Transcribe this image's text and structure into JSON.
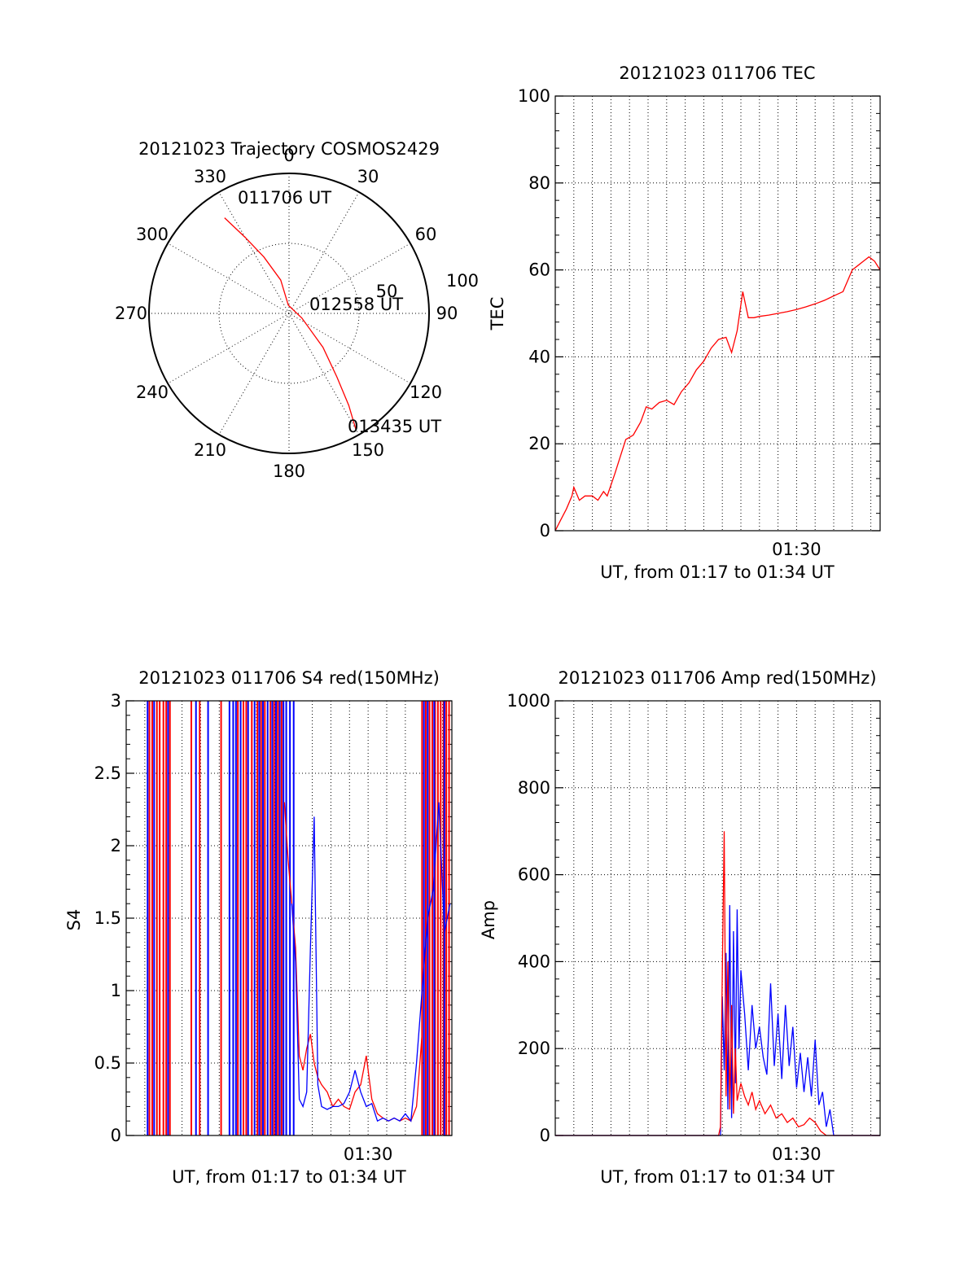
{
  "colors": {
    "red": "#ff0000",
    "blue": "#0000ff",
    "axis": "#000000"
  },
  "chart_data": [
    {
      "type": "polar-trajectory",
      "title": "20121023 Trajectory COSMOS2429",
      "angle_labels": [
        "0",
        "30",
        "60",
        "90",
        "120",
        "150",
        "180",
        "210",
        "240",
        "270",
        "300",
        "330"
      ],
      "radius_labels": [
        "50",
        "100"
      ],
      "start_label": "011706 UT",
      "mid_label": "012558 UT",
      "end_label": "013435 UT",
      "trajectory": [
        [
          326,
          84
        ],
        [
          330,
          64
        ],
        [
          336,
          45
        ],
        [
          346,
          25
        ],
        [
          355,
          6
        ],
        [
          110,
          10
        ],
        [
          135,
          35
        ],
        [
          143,
          58
        ],
        [
          147,
          80
        ],
        [
          150,
          97
        ]
      ]
    },
    {
      "type": "line",
      "title": "20121023 011706 TEC",
      "xlabel": "UT, from 01:17 to 01:34 UT",
      "ylabel": "TEC",
      "xlim": [
        0,
        17.5
      ],
      "ylim": [
        0,
        100
      ],
      "yticks": [
        "0",
        "20",
        "40",
        "60",
        "80",
        "100"
      ],
      "xtick_label": "01:30",
      "xtick_value": 13,
      "series": [
        {
          "color": "red",
          "x": [
            0,
            0.3,
            0.6,
            0.9,
            1.0,
            1.3,
            1.6,
            2.0,
            2.3,
            2.6,
            2.8,
            3.2,
            3.5,
            3.8,
            4.2,
            4.6,
            4.9,
            5.2,
            5.6,
            6.0,
            6.4,
            6.8,
            7.2,
            7.6,
            8.0,
            8.4,
            8.8,
            9.2,
            9.5,
            9.8,
            10.1,
            10.4,
            10.7,
            11.0,
            11.5,
            12.0,
            12.5,
            13.0,
            13.5,
            14.0,
            14.5,
            15.0,
            15.5,
            16.0,
            16.3,
            16.6,
            16.9,
            17.2,
            17.5
          ],
          "y": [
            0,
            2.5,
            5,
            8,
            10,
            7,
            8,
            8,
            7,
            9,
            8,
            13,
            17,
            21,
            22,
            25,
            28.5,
            28,
            29.5,
            30,
            29,
            32,
            34,
            37,
            39,
            42,
            44,
            44.5,
            41,
            46,
            55,
            49,
            49,
            49.3,
            49.6,
            50,
            50.4,
            50.9,
            51.5,
            52.2,
            53,
            54,
            55,
            60,
            61,
            62,
            63,
            62,
            60
          ]
        }
      ]
    },
    {
      "type": "line",
      "title": "20121023 011706 S4 red(150MHz)",
      "xlabel": "UT, from 01:17 to 01:34 UT",
      "ylabel": "S4",
      "xlim": [
        0,
        17.5
      ],
      "ylim": [
        0,
        3
      ],
      "yticks": [
        "0",
        "0.5",
        "1",
        "1.5",
        "2",
        "2.5",
        "3"
      ],
      "xtick_label": "01:30",
      "xtick_value": 13,
      "red_spikes_x": [
        1.25,
        1.4,
        1.65,
        1.8,
        2.0,
        2.15,
        2.35,
        3.5,
        3.95,
        5.1,
        6.0,
        6.3,
        6.45,
        6.75,
        7.05,
        7.25,
        7.45,
        7.75,
        7.95,
        8.15,
        8.35,
        15.9,
        16.1,
        16.3,
        16.45,
        16.6,
        16.75,
        16.9,
        17.05,
        17.2,
        17.35
      ],
      "blue_spikes_x": [
        1.15,
        1.5,
        2.25,
        3.75,
        4.4,
        5.55,
        5.75,
        5.9,
        6.15,
        6.55,
        6.9,
        7.15,
        7.35,
        7.6,
        7.85,
        8.05,
        8.25,
        8.45,
        8.6,
        8.8,
        9.0,
        16.0,
        16.2,
        16.55,
        17.1
      ],
      "series": [
        {
          "color": "red",
          "x": [
            8.5,
            8.7,
            8.9,
            9.1,
            9.3,
            9.5,
            9.7,
            9.9,
            10.1,
            10.3,
            10.5,
            10.8,
            11.1,
            11.4,
            11.7,
            12.0,
            12.3,
            12.6,
            12.9,
            13.2,
            13.5,
            13.8,
            14.1,
            14.4,
            14.7,
            15.0,
            15.3,
            15.6,
            15.9
          ],
          "y": [
            2.3,
            1.9,
            1.6,
            1.3,
            0.55,
            0.45,
            0.6,
            0.7,
            0.5,
            0.4,
            0.35,
            0.3,
            0.2,
            0.25,
            0.2,
            0.18,
            0.3,
            0.35,
            0.55,
            0.25,
            0.15,
            0.12,
            0.1,
            0.12,
            0.1,
            0.12,
            0.1,
            0.2,
            0.7
          ]
        },
        {
          "color": "blue",
          "x": [
            8.9,
            9.1,
            9.3,
            9.5,
            9.7,
            9.9,
            10.1,
            10.3,
            10.5,
            10.8,
            11.1,
            11.4,
            11.7,
            12.0,
            12.3,
            12.6,
            12.9,
            13.2,
            13.5,
            13.8,
            14.1,
            14.4,
            14.7,
            15.0,
            15.3,
            15.6,
            15.9,
            16.2,
            16.5,
            16.8,
            17.1,
            17.4
          ],
          "y": [
            1.6,
            1.2,
            0.25,
            0.2,
            0.3,
            1.3,
            2.2,
            0.35,
            0.2,
            0.18,
            0.2,
            0.2,
            0.22,
            0.3,
            0.45,
            0.3,
            0.2,
            0.22,
            0.1,
            0.12,
            0.1,
            0.12,
            0.1,
            0.15,
            0.1,
            0.5,
            1.0,
            1.5,
            1.7,
            2.3,
            1.4,
            1.6
          ]
        }
      ]
    },
    {
      "type": "line",
      "title": "20121023 011706 Amp red(150MHz)",
      "xlabel": "UT, from 01:17 to 01:34 UT",
      "ylabel": "Amp",
      "xlim": [
        0,
        17.5
      ],
      "ylim": [
        0,
        1000
      ],
      "yticks": [
        "0",
        "200",
        "400",
        "600",
        "800",
        "1000"
      ],
      "xtick_label": "01:30",
      "xtick_value": 13,
      "series": [
        {
          "color": "blue",
          "x": [
            0,
            8.9,
            9.0,
            9.1,
            9.2,
            9.3,
            9.4,
            9.5,
            9.6,
            9.7,
            9.8,
            9.9,
            10.0,
            10.2,
            10.4,
            10.6,
            10.8,
            11.0,
            11.2,
            11.4,
            11.6,
            11.8,
            12.0,
            12.2,
            12.4,
            12.6,
            12.8,
            13.0,
            13.2,
            13.4,
            13.6,
            13.8,
            14.0,
            14.2,
            14.4,
            14.6,
            14.8,
            15.0,
            17.5
          ],
          "y": [
            0,
            0,
            320,
            150,
            420,
            60,
            530,
            40,
            470,
            120,
            520,
            200,
            380,
            280,
            150,
            300,
            200,
            250,
            180,
            140,
            350,
            160,
            280,
            130,
            300,
            160,
            250,
            110,
            190,
            100,
            180,
            90,
            220,
            70,
            100,
            20,
            60,
            0,
            0
          ]
        },
        {
          "color": "red",
          "x": [
            0,
            8.8,
            8.9,
            9.0,
            9.1,
            9.2,
            9.3,
            9.4,
            9.5,
            9.6,
            9.7,
            9.8,
            10.0,
            10.2,
            10.4,
            10.6,
            10.8,
            11.0,
            11.3,
            11.6,
            11.9,
            12.2,
            12.5,
            12.8,
            13.1,
            13.4,
            13.7,
            14.0,
            14.3,
            14.6,
            17.5
          ],
          "y": [
            0,
            0,
            20,
            380,
            700,
            90,
            400,
            60,
            300,
            50,
            200,
            80,
            120,
            90,
            70,
            100,
            60,
            80,
            50,
            70,
            40,
            50,
            30,
            40,
            20,
            25,
            40,
            30,
            10,
            0,
            0
          ]
        }
      ]
    }
  ]
}
